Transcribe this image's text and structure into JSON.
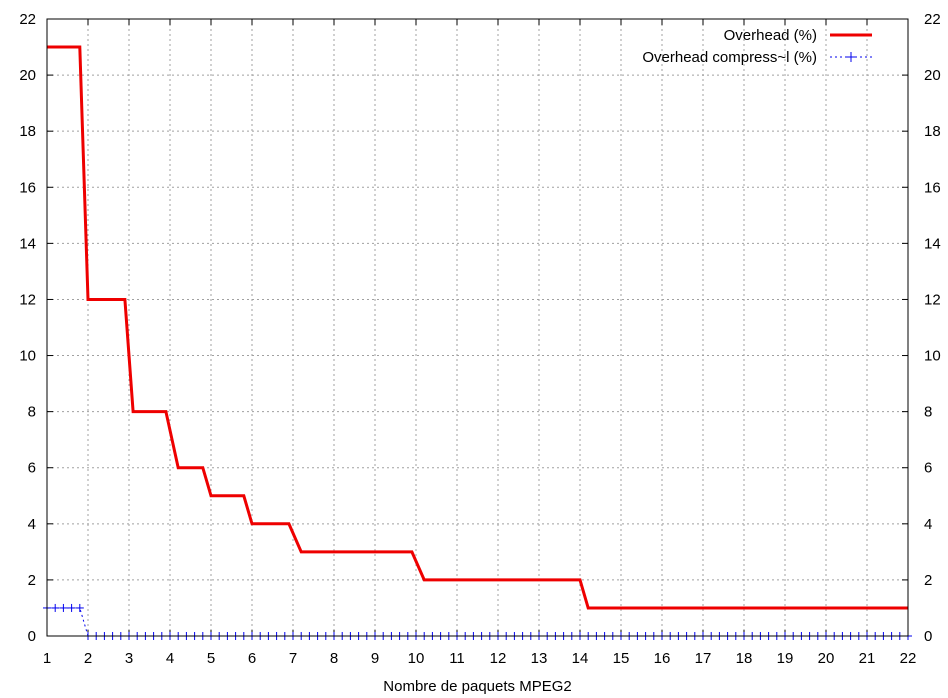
{
  "chart_data": {
    "type": "line",
    "title": "",
    "xlabel": "Nombre de paquets MPEG2",
    "ylabel": "",
    "xlim": [
      1,
      22
    ],
    "ylim": [
      0,
      22
    ],
    "x_ticks": [
      "1",
      "2",
      "3",
      "4",
      "5",
      "6",
      "7",
      "8",
      "9",
      "10",
      "11",
      "12",
      "13",
      "14",
      "15",
      "16",
      "17",
      "18",
      "19",
      "20",
      "21",
      "22"
    ],
    "y_ticks": [
      "0",
      "2",
      "4",
      "6",
      "8",
      "10",
      "12",
      "14",
      "16",
      "18",
      "20",
      "22"
    ],
    "y2_ticks": [
      "0",
      "2",
      "4",
      "6",
      "8",
      "10",
      "12",
      "14",
      "16",
      "18",
      "20",
      "22"
    ],
    "grid": true,
    "legend_position": "top-right",
    "series": [
      {
        "name": "Overhead (%)",
        "color": "#ee0000",
        "style": "solid",
        "points": [
          [
            1,
            21
          ],
          [
            1.8,
            21
          ],
          [
            2.0,
            12
          ],
          [
            2.9,
            12
          ],
          [
            3.1,
            8
          ],
          [
            3.9,
            8
          ],
          [
            4.2,
            6
          ],
          [
            4.8,
            6
          ],
          [
            5.0,
            5
          ],
          [
            5.8,
            5
          ],
          [
            6.0,
            4
          ],
          [
            6.9,
            4
          ],
          [
            7.2,
            3
          ],
          [
            9.9,
            3
          ],
          [
            10.2,
            2
          ],
          [
            14.0,
            2
          ],
          [
            14.2,
            1
          ],
          [
            22,
            1
          ]
        ]
      },
      {
        "name": "Overhead compress~l (%)",
        "color": "#0000ee",
        "style": "dotted",
        "points": [
          [
            1,
            1
          ],
          [
            1.2,
            1
          ],
          [
            1.4,
            1
          ],
          [
            1.6,
            1
          ],
          [
            1.8,
            1
          ],
          [
            2.0,
            0
          ],
          [
            2.2,
            0
          ],
          [
            2.4,
            0
          ],
          [
            2.6,
            0
          ],
          [
            2.8,
            0
          ],
          [
            3.0,
            0
          ],
          [
            3.2,
            0
          ],
          [
            3.4,
            0
          ],
          [
            3.6,
            0
          ],
          [
            3.8,
            0
          ],
          [
            4.0,
            0
          ],
          [
            4.2,
            0
          ],
          [
            4.4,
            0
          ],
          [
            4.6,
            0
          ],
          [
            4.8,
            0
          ],
          [
            5.0,
            0
          ],
          [
            5.2,
            0
          ],
          [
            5.4,
            0
          ],
          [
            5.6,
            0
          ],
          [
            5.8,
            0
          ],
          [
            6.0,
            0
          ],
          [
            6.2,
            0
          ],
          [
            6.4,
            0
          ],
          [
            6.6,
            0
          ],
          [
            6.8,
            0
          ],
          [
            7.0,
            0
          ],
          [
            7.2,
            0
          ],
          [
            7.4,
            0
          ],
          [
            7.6,
            0
          ],
          [
            7.8,
            0
          ],
          [
            8.0,
            0
          ],
          [
            8.2,
            0
          ],
          [
            8.4,
            0
          ],
          [
            8.6,
            0
          ],
          [
            8.8,
            0
          ],
          [
            9.0,
            0
          ],
          [
            9.2,
            0
          ],
          [
            9.4,
            0
          ],
          [
            9.6,
            0
          ],
          [
            9.8,
            0
          ],
          [
            10.0,
            0
          ],
          [
            10.2,
            0
          ],
          [
            10.4,
            0
          ],
          [
            10.6,
            0
          ],
          [
            10.8,
            0
          ],
          [
            11.0,
            0
          ],
          [
            11.2,
            0
          ],
          [
            11.4,
            0
          ],
          [
            11.6,
            0
          ],
          [
            11.8,
            0
          ],
          [
            12.0,
            0
          ],
          [
            12.2,
            0
          ],
          [
            12.4,
            0
          ],
          [
            12.6,
            0
          ],
          [
            12.8,
            0
          ],
          [
            13.0,
            0
          ],
          [
            13.2,
            0
          ],
          [
            13.4,
            0
          ],
          [
            13.6,
            0
          ],
          [
            13.8,
            0
          ],
          [
            14.0,
            0
          ],
          [
            14.2,
            0
          ],
          [
            14.4,
            0
          ],
          [
            14.6,
            0
          ],
          [
            14.8,
            0
          ],
          [
            15.0,
            0
          ],
          [
            15.2,
            0
          ],
          [
            15.4,
            0
          ],
          [
            15.6,
            0
          ],
          [
            15.8,
            0
          ],
          [
            16.0,
            0
          ],
          [
            16.2,
            0
          ],
          [
            16.4,
            0
          ],
          [
            16.6,
            0
          ],
          [
            16.8,
            0
          ],
          [
            17.0,
            0
          ],
          [
            17.2,
            0
          ],
          [
            17.4,
            0
          ],
          [
            17.6,
            0
          ],
          [
            17.8,
            0
          ],
          [
            18.0,
            0
          ],
          [
            18.2,
            0
          ],
          [
            18.4,
            0
          ],
          [
            18.6,
            0
          ],
          [
            18.8,
            0
          ],
          [
            19.0,
            0
          ],
          [
            19.2,
            0
          ],
          [
            19.4,
            0
          ],
          [
            19.6,
            0
          ],
          [
            19.8,
            0
          ],
          [
            20.0,
            0
          ],
          [
            20.2,
            0
          ],
          [
            20.4,
            0
          ],
          [
            20.6,
            0
          ],
          [
            20.8,
            0
          ],
          [
            21.0,
            0
          ],
          [
            21.2,
            0
          ],
          [
            21.4,
            0
          ],
          [
            21.6,
            0
          ],
          [
            21.8,
            0
          ],
          [
            22.0,
            0
          ]
        ]
      }
    ]
  }
}
